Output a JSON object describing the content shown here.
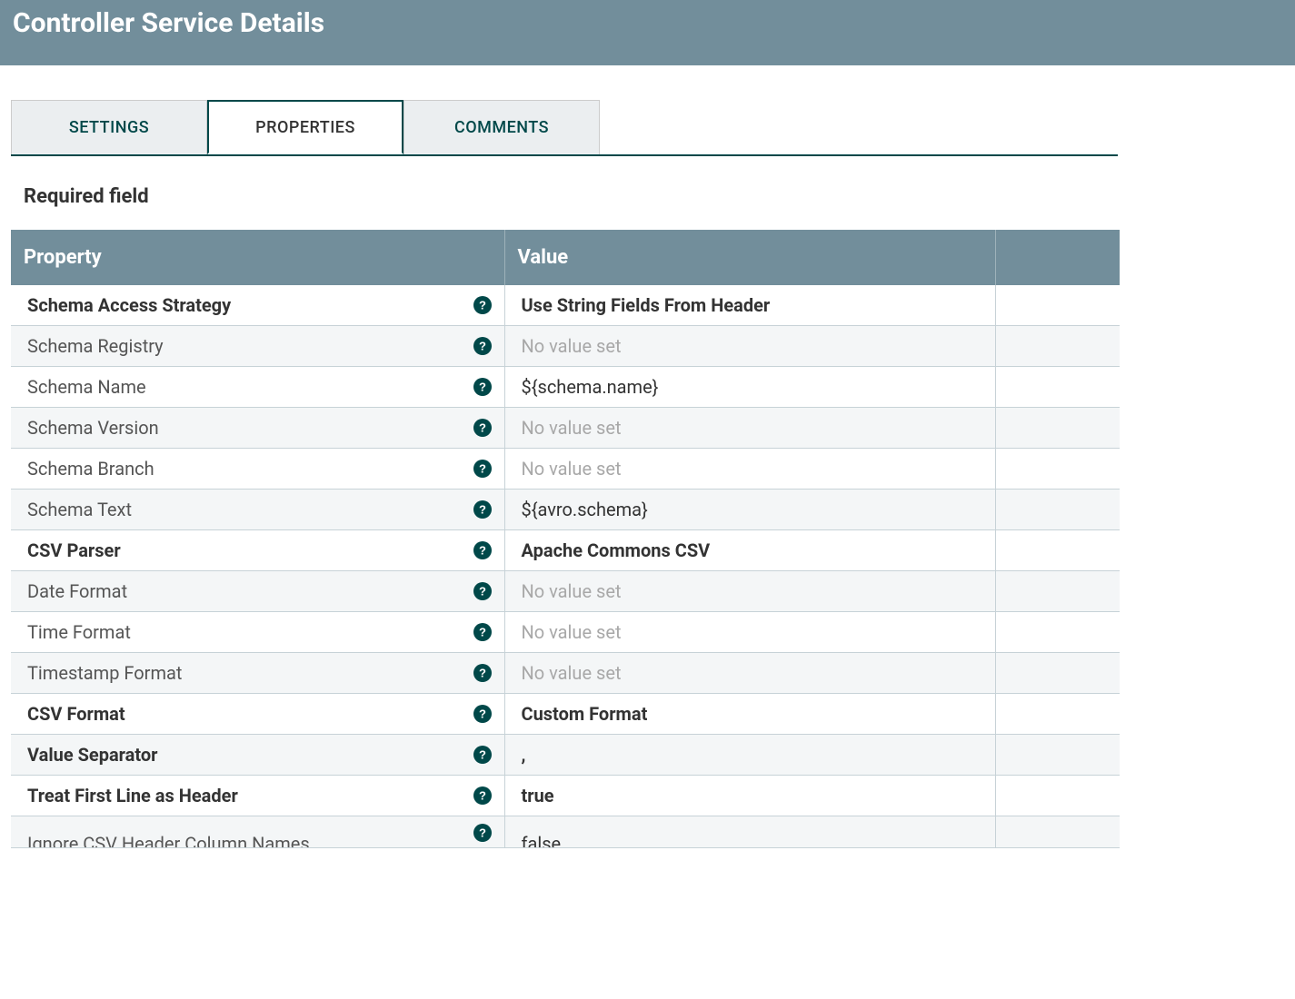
{
  "header": {
    "title": "Controller Service Details"
  },
  "tabs": {
    "settings": "SETTINGS",
    "properties": "PROPERTIES",
    "comments": "COMMENTS"
  },
  "required_label": "Required field",
  "table": {
    "header_property": "Property",
    "header_value": "Value"
  },
  "colors": {
    "header_bg": "#728e9b",
    "accent": "#004849",
    "tab_inactive_bg": "#ebeef0",
    "row_odd_bg": "#f4f6f7",
    "placeholder": "#a8a8a8"
  },
  "properties": [
    {
      "name": "Schema Access Strategy",
      "bold": true,
      "value": "Use String Fields From Header",
      "value_bold": true,
      "value_placeholder": false
    },
    {
      "name": "Schema Registry",
      "bold": false,
      "value": "No value set",
      "value_bold": false,
      "value_placeholder": true
    },
    {
      "name": "Schema Name",
      "bold": false,
      "value": "${schema.name}",
      "value_bold": false,
      "value_placeholder": false
    },
    {
      "name": "Schema Version",
      "bold": false,
      "value": "No value set",
      "value_bold": false,
      "value_placeholder": true
    },
    {
      "name": "Schema Branch",
      "bold": false,
      "value": "No value set",
      "value_bold": false,
      "value_placeholder": true
    },
    {
      "name": "Schema Text",
      "bold": false,
      "value": "${avro.schema}",
      "value_bold": false,
      "value_placeholder": false
    },
    {
      "name": "CSV Parser",
      "bold": true,
      "value": "Apache Commons CSV",
      "value_bold": true,
      "value_placeholder": false
    },
    {
      "name": "Date Format",
      "bold": false,
      "value": "No value set",
      "value_bold": false,
      "value_placeholder": true
    },
    {
      "name": "Time Format",
      "bold": false,
      "value": "No value set",
      "value_bold": false,
      "value_placeholder": true
    },
    {
      "name": "Timestamp Format",
      "bold": false,
      "value": "No value set",
      "value_bold": false,
      "value_placeholder": true
    },
    {
      "name": "CSV Format",
      "bold": true,
      "value": "Custom Format",
      "value_bold": true,
      "value_placeholder": false
    },
    {
      "name": "Value Separator",
      "bold": true,
      "value": ",",
      "value_bold": true,
      "value_placeholder": false
    },
    {
      "name": "Treat First Line as Header",
      "bold": true,
      "value": "true",
      "value_bold": true,
      "value_placeholder": false
    },
    {
      "name": "Ignore CSV Header Column Names",
      "bold": false,
      "value": "false",
      "value_bold": false,
      "value_placeholder": false
    }
  ]
}
